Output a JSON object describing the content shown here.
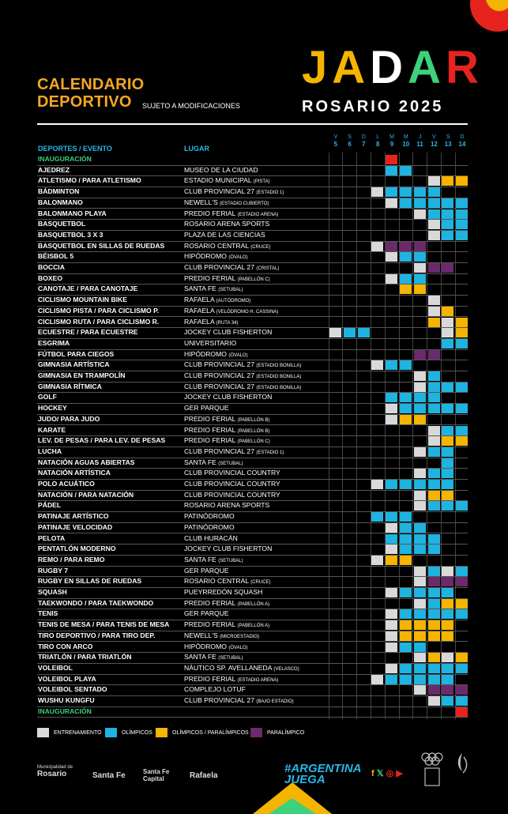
{
  "colors": {
    "entrenamiento": "#d9d9d9",
    "olimpicos": "#1fb3e0",
    "olimp_paral": "#f5b400",
    "paralimpico": "#6b2a6b",
    "inauguracion": "#e6231f"
  },
  "header": {
    "cal_title_1": "CALENDARIO",
    "cal_title_2": "DEPORTIVO",
    "subject": "SUJETO A MODIFICACIONES",
    "logo_letters": [
      "J",
      "A",
      "D",
      "A",
      "R"
    ],
    "city": "ROSARIO 2025"
  },
  "table": {
    "col_event": "DEPORTES / EVENTO",
    "col_place": "LUGAR",
    "days": [
      [
        "V",
        "5"
      ],
      [
        "S",
        "6"
      ],
      [
        "D",
        "7"
      ],
      [
        "L",
        "8"
      ],
      [
        "M",
        "9"
      ],
      [
        "M",
        "10"
      ],
      [
        "J",
        "11"
      ],
      [
        "V",
        "12"
      ],
      [
        "S",
        "13"
      ],
      [
        "D",
        "14"
      ]
    ],
    "rows": [
      {
        "ev": "INAUGURACIÓN",
        "pl": "",
        "sm": "",
        "ina": true,
        "c": "....R....."
      },
      {
        "ev": "AJEDREZ",
        "pl": "MUSEO DE LA CIUDAD",
        "sm": "",
        "c": "....BB...."
      },
      {
        "ev": "ATLETISMO / PARA ATLETISMO",
        "pl": "ESTADIO MUNICIPAL",
        "sm": "(PISTA)",
        "c": ".......WYY"
      },
      {
        "ev": "BÁDMINTON",
        "pl": "CLUB PROVINCIAL 27",
        "sm": "(ESTADIO 1)",
        "c": "...WBBBB.."
      },
      {
        "ev": "BALONMANO",
        "pl": "NEWELL'S",
        "sm": "(ESTADIO CUBIERTO)",
        "c": "....WBBBBB"
      },
      {
        "ev": "BALONMANO PLAYA",
        "pl": "PREDIO FERIAL",
        "sm": "(ESTADIO ARENA)",
        "c": "......WBBB"
      },
      {
        "ev": "BASQUETBOL",
        "pl": "ROSARIO ARENA SPORTS",
        "sm": "",
        "c": ".......WBB"
      },
      {
        "ev": "BASQUETBOL 3 X 3",
        "pl": "PLAZA DE LAS CIENCIAS",
        "sm": "",
        "c": ".......WBB"
      },
      {
        "ev": "BASQUETBOL EN SILLAS DE RUEDAS",
        "pl": "ROSARIO CENTRAL",
        "sm": "(CRUCE)",
        "c": "...WPPP..."
      },
      {
        "ev": "BÉISBOL 5",
        "pl": "HIPÓDROMO",
        "sm": "(ÓVALO)",
        "c": "....WBB..."
      },
      {
        "ev": "BOCCIA",
        "pl": "CLUB PROVINCIAL 27",
        "sm": "(CRISTAL)",
        "c": "......WPP."
      },
      {
        "ev": "BOXEO",
        "pl": "PREDIO FERIAL",
        "sm": "(PABELLÓN C)",
        "c": "....WBB..."
      },
      {
        "ev": "CANOTAJE / PARA CANOTAJE",
        "pl": "SANTA FE",
        "sm": "(SETUBAL)",
        "c": ".....YY..."
      },
      {
        "ev": "CICLISMO MOUNTAIN BIKE",
        "pl": "RAFAELA",
        "sm": "(AUTÓDROMO)",
        "c": ".......W.."
      },
      {
        "ev": "CICLISMO PISTA / PARA CICLISMO P.",
        "pl": "RAFAELA",
        "sm": "(VELÓDROMO H. CASSINA)",
        "c": ".......WY."
      },
      {
        "ev": "CICLISMO RUTA / PARA CICLISMO R.",
        "pl": "RAFAELA",
        "sm": "(RUTA 34)",
        "c": ".......YWY"
      },
      {
        "ev": "ECUESTRE / PARA ECUESTRE",
        "pl": "JOCKEY CLUB FISHERTON",
        "sm": "",
        "c": "WBB.....WY"
      },
      {
        "ev": "ESGRIMA",
        "pl": "UNIVERSITARIO",
        "sm": "",
        "c": "........BB"
      },
      {
        "ev": "FÚTBOL PARA CIEGOS",
        "pl": "HIPÓDROMO",
        "sm": "(ÓVALO)",
        "c": "......PP.."
      },
      {
        "ev": "GIMNASIA ARTÍSTICA",
        "pl": "CLUB PROVINCIAL 27",
        "sm": "(ESTADIO BONILLA)",
        "c": "...WBB...."
      },
      {
        "ev": "GIMNASIA EN TRAMPOLÍN",
        "pl": "CLUB PROVINCIAL 27",
        "sm": "(ESTADIO BONILLA)",
        "c": "......WB.."
      },
      {
        "ev": "GIMNASIA RÍTMICA",
        "pl": "CLUB PROVINCIAL 27",
        "sm": "(ESTADIO BONILLA)",
        "c": "......WBBB"
      },
      {
        "ev": "GOLF",
        "pl": "JOCKEY CLUB FISHERTON",
        "sm": "",
        "c": "....BBBB.."
      },
      {
        "ev": "HOCKEY",
        "pl": "GER PARQUE",
        "sm": "",
        "c": "....WBBBBB"
      },
      {
        "ev": "JUDO/ PARA JUDO",
        "pl": "PREDIO FERIAL",
        "sm": "(PABELLÓN B)",
        "c": "....WYY..."
      },
      {
        "ev": "KARATE",
        "pl": "PREDIO FERIAL",
        "sm": "(PABELLÓN B)",
        "c": ".......WBB"
      },
      {
        "ev": "LEV. DE PESAS / PARA LEV. DE PESAS",
        "pl": "PREDIO FERIAL",
        "sm": "(PABELLÓN C)",
        "c": ".......WYY"
      },
      {
        "ev": "LUCHA",
        "pl": "CLUB PROVINCIAL 27",
        "sm": "(ESTADIO 1)",
        "c": "......WBB."
      },
      {
        "ev": "NATACIÓN AGUAS ABIERTAS",
        "pl": "SANTA FE",
        "sm": "(SETUBAL)",
        "c": "........B."
      },
      {
        "ev": "NATACIÓN ARTÍSTICA",
        "pl": "CLUB PROVINCIAL COUNTRY",
        "sm": "",
        "c": "......WBB."
      },
      {
        "ev": "POLO ACUÁTICO",
        "pl": "CLUB PROVINCIAL COUNTRY",
        "sm": "",
        "c": "...WBBBBB."
      },
      {
        "ev": "NATACIÓN / PARA NATACIÓN",
        "pl": "CLUB PROVINCIAL COUNTRY",
        "sm": "",
        "c": "......WYY."
      },
      {
        "ev": "PÁDEL",
        "pl": "ROSARIO ARENA SPORTS",
        "sm": "",
        "c": "......WBBB"
      },
      {
        "ev": "PATINAJE ARTÍSTICO",
        "pl": "PATINÓDROMO",
        "sm": "",
        "c": "...BBB...."
      },
      {
        "ev": "PATINAJE VELOCIDAD",
        "pl": "PATINÓDROMO",
        "sm": "",
        "c": "....WBB..."
      },
      {
        "ev": "PELOTA",
        "pl": "CLUB HURACÁN",
        "sm": "",
        "c": "....BBBB.."
      },
      {
        "ev": "PENTATLÓN MODERNO",
        "pl": "JOCKEY CLUB FISHERTON",
        "sm": "",
        "c": "....WBBB.."
      },
      {
        "ev": "REMO / PARA REMO",
        "pl": "SANTA FE",
        "sm": "(SETUBAL)",
        "c": "...WYY...."
      },
      {
        "ev": "RUGBY 7",
        "pl": "GER PARQUE",
        "sm": "",
        "c": "......WBWB"
      },
      {
        "ev": "RUGBY EN SILLAS DE RUEDAS",
        "pl": "ROSARIO CENTRAL",
        "sm": "(CRUCE)",
        "c": "......WPPP"
      },
      {
        "ev": "SQUASH",
        "pl": "PUEYRREDÓN SQUASH",
        "sm": "",
        "c": "....WBBBB."
      },
      {
        "ev": "TAEKWONDO / PARA TAEKWONDO",
        "pl": "PREDIO FERIAL",
        "sm": "(PABELLÓN A)",
        "c": "......WBYY"
      },
      {
        "ev": "TENIS",
        "pl": "GER PARQUE",
        "sm": "",
        "c": "....WBBBBB"
      },
      {
        "ev": "TENIS DE MESA / PARA TENIS DE MESA",
        "pl": "PREDIO FERIAL",
        "sm": "(PABELLÓN A)",
        "c": "....WYYYY."
      },
      {
        "ev": "TIRO DEPORTIVO / PARA TIRO DEP.",
        "pl": "NEWELL'S",
        "sm": "(MICROESTADIO)",
        "c": "....WYYYY."
      },
      {
        "ev": "TIRO CON ARCO",
        "pl": "HIPÓDROMO",
        "sm": "(ÓVALO)",
        "c": "....WBB..."
      },
      {
        "ev": "TRIATLÓN / PARA TRIATLÓN",
        "pl": "SANTA FE",
        "sm": "(SETUBAL)",
        "c": "......WYWY"
      },
      {
        "ev": "VOLEIBOL",
        "pl": "NÁUTICO SP. AVELLANEDA",
        "sm": "(VELASCO)",
        "c": "....WBBBBB"
      },
      {
        "ev": "VOLEIBOL PLAYA",
        "pl": "PREDIO FERIAL",
        "sm": "(ESTADIO ARENA)",
        "c": "...WBBBBB."
      },
      {
        "ev": "VOLEIBOL SENTADO",
        "pl": "COMPLEJO LOTUF",
        "sm": "",
        "c": "......WPPP"
      },
      {
        "ev": "WUSHU KUNGFU",
        "pl": "CLUB PROVINCIAL 27",
        "sm": "(BAJO ESTADIO)",
        "c": ".......WBB"
      },
      {
        "ev": "INAUGURACIÓN",
        "pl": "",
        "sm": "",
        "ina": true,
        "c": ".........R"
      }
    ]
  },
  "legend": {
    "training": "ENTRENAMIENTO",
    "olympic": "OLÍMPICOS",
    "olympic_para": "OLÍMPICOS / PARALÍMPICOS",
    "paralympic": "PARALÍMPICO"
  },
  "footer": {
    "muni_small": "Municipalidad de",
    "muni": "Rosario",
    "santafe": "Santa Fe",
    "santafe_cap": "Santa Fe Capital",
    "rafaela": "Rafaela",
    "argentina_1": "#ARGENTINA",
    "argentina_2": "JUEGA"
  }
}
